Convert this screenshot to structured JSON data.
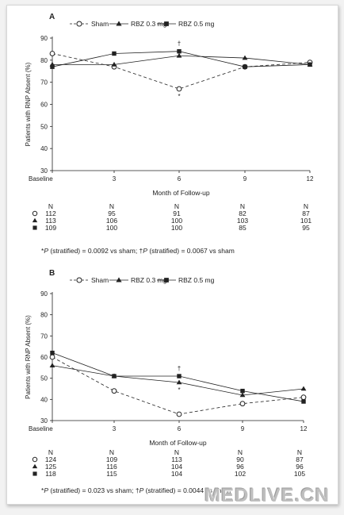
{
  "watermark": "MEDLIVE.CN",
  "colors": {
    "line": "#222222",
    "axis": "#222222"
  },
  "chart_data": [
    {
      "type": "line",
      "panel_label": "A",
      "ylabel": "Patients with RNP Absent (%)",
      "xlabel": "Month of Follow-up",
      "ylim": [
        30,
        90
      ],
      "yticks": [
        30,
        40,
        50,
        60,
        70,
        80,
        90
      ],
      "x": [
        "Baseline",
        "3",
        "6",
        "9",
        "12"
      ],
      "legend_position": "top",
      "series": [
        {
          "name": "Sham",
          "marker": "circle-open",
          "dash": true,
          "values": [
            83,
            77,
            67,
            77,
            79
          ]
        },
        {
          "name": "RBZ 0.3 mg",
          "marker": "triangle",
          "dash": false,
          "values": [
            78,
            78,
            82,
            81,
            78
          ]
        },
        {
          "name": "RBZ 0.5 mg",
          "marker": "square",
          "dash": false,
          "values": [
            77,
            83,
            84,
            77,
            78
          ]
        }
      ],
      "annotations": [
        {
          "text": "†",
          "series": 2,
          "index": 2
        },
        {
          "text": "*",
          "series": 0,
          "index": 2
        }
      ],
      "n_table": {
        "header": "N",
        "rows": [
          {
            "marker": "circle-open",
            "values": [
              "112",
              "95",
              "91",
              "82",
              "87"
            ]
          },
          {
            "marker": "triangle",
            "values": [
              "113",
              "106",
              "100",
              "103",
              "101"
            ]
          },
          {
            "marker": "square",
            "values": [
              "109",
              "100",
              "100",
              "85",
              "95"
            ]
          }
        ]
      },
      "footnote": "*P (stratified) = 0.0092 vs sham; †P (stratified) = 0.0067 vs sham"
    },
    {
      "type": "line",
      "panel_label": "B",
      "ylabel": "Patients with RNP Absent (%)",
      "xlabel": "Month of Follow-up",
      "ylim": [
        30,
        90
      ],
      "yticks": [
        30,
        40,
        50,
        60,
        70,
        80,
        90
      ],
      "x": [
        "Baseline",
        "3",
        "6",
        "9",
        "12"
      ],
      "legend_position": "top",
      "series": [
        {
          "name": "Sham",
          "marker": "circle-open",
          "dash": true,
          "values": [
            60,
            44,
            33,
            38,
            41
          ]
        },
        {
          "name": "RBZ 0.3 mg",
          "marker": "triangle",
          "dash": false,
          "values": [
            56,
            51,
            48,
            42,
            45
          ]
        },
        {
          "name": "RBZ 0.5 mg",
          "marker": "square",
          "dash": false,
          "values": [
            62,
            51,
            51,
            44,
            39
          ]
        }
      ],
      "annotations": [
        {
          "text": "†",
          "series": 2,
          "index": 2
        },
        {
          "text": "*",
          "series": 1,
          "index": 2
        }
      ],
      "n_table": {
        "header": "N",
        "rows": [
          {
            "marker": "circle-open",
            "values": [
              "124",
              "109",
              "113",
              "90",
              "87"
            ]
          },
          {
            "marker": "triangle",
            "values": [
              "125",
              "116",
              "104",
              "96",
              "96"
            ]
          },
          {
            "marker": "square",
            "values": [
              "118",
              "115",
              "104",
              "102",
              "105"
            ]
          }
        ]
      },
      "footnote": "*P (stratified) = 0.023 vs sham; †P (stratified) = 0.0044 vs sham"
    }
  ]
}
